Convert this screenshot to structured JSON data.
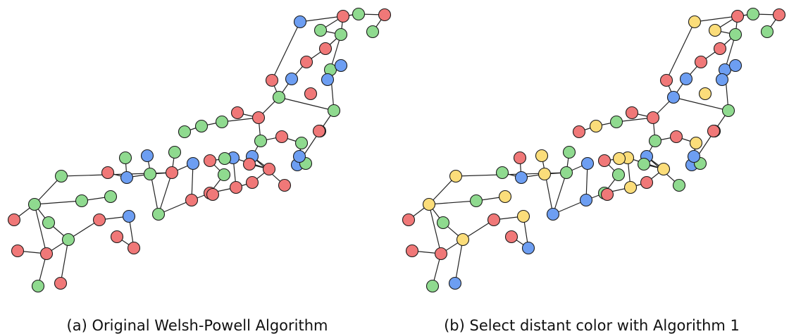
{
  "figure": {
    "panels": [
      {
        "id": "a",
        "caption": "(a) Original Welsh-Powell Algorithm",
        "colors": [
          "R",
          "R",
          "G",
          "G",
          "R",
          "G",
          "R",
          "G",
          "R",
          "G",
          "B",
          "R",
          "R",
          "G",
          "B",
          "R",
          "G",
          "G",
          "R",
          "G",
          "B",
          "R",
          "B",
          "G",
          "R",
          "R",
          "R",
          "G",
          "B",
          "G",
          "G",
          "G",
          "R",
          "R",
          "B",
          "G",
          "R",
          "R",
          "B",
          "G",
          "R",
          "B",
          "R",
          "G",
          "R",
          "G",
          "B",
          "R",
          "G",
          "R",
          "G",
          "G",
          "R",
          "B",
          "G",
          "G",
          "R",
          "G",
          "B",
          "R",
          "G",
          "R",
          "G",
          "R",
          "B",
          "R",
          "B"
        ]
      },
      {
        "id": "b",
        "caption": "(b) Select distant color with Algorithm 1",
        "colors": [
          "R",
          "R",
          "G",
          "Y",
          "R",
          "G",
          "B",
          "Y",
          "R",
          "G",
          "Y",
          "R",
          "B",
          "Y",
          "B",
          "G",
          "Y",
          "R",
          "G",
          "B",
          "Y",
          "B",
          "B",
          "G",
          "R",
          "G",
          "Y",
          "G",
          "Y",
          "Y",
          "R",
          "G",
          "R",
          "Y",
          "B",
          "G",
          "R",
          "G",
          "B",
          "Y",
          "R",
          "Y",
          "R",
          "B",
          "Y",
          "G",
          "B",
          "R",
          "B",
          "R",
          "Y",
          "G",
          "R",
          "B",
          "G",
          "G",
          "R",
          "Y",
          "Y",
          "R",
          "G",
          "R",
          "Y",
          "G",
          "B",
          "R",
          "B"
        ]
      }
    ],
    "palette": {
      "R": "#f07878",
      "G": "#8fda8f",
      "B": "#6d9ef2",
      "Y": "#fbdd7a"
    }
  }
}
